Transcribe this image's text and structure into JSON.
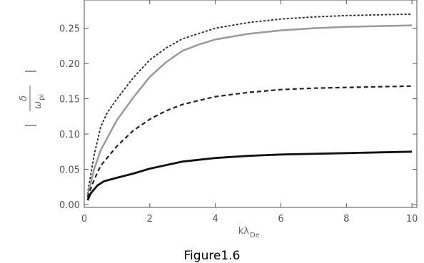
{
  "chart_data": {
    "type": "line",
    "xlabel": {
      "base": "kλ",
      "sub": "De"
    },
    "ylabel": {
      "numerator": "δ",
      "denominator": "ω",
      "denominator_sub": "pi"
    },
    "xlim": [
      0,
      10.15
    ],
    "ylim": [
      -0.004,
      0.29
    ],
    "xticks": [
      0,
      2,
      4,
      6,
      8,
      10
    ],
    "yticks": [
      0.0,
      0.05,
      0.1,
      0.15,
      0.2,
      0.25
    ],
    "ytick_labels": [
      "0.00",
      "0.05",
      "0.10",
      "0.15",
      "0.20",
      "0.25"
    ],
    "grid": false,
    "series": [
      {
        "style": "dotted",
        "color": "#333333",
        "x": [
          0.1,
          0.3,
          0.5,
          0.7,
          1.0,
          1.5,
          2.0,
          2.5,
          3.0,
          4.0,
          5.0,
          6.0,
          7.0,
          8.0,
          9.0,
          10.0
        ],
        "y": [
          0.015,
          0.07,
          0.11,
          0.13,
          0.15,
          0.18,
          0.205,
          0.222,
          0.235,
          0.25,
          0.258,
          0.263,
          0.266,
          0.268,
          0.269,
          0.27
        ]
      },
      {
        "style": "solid",
        "color": "#9a9a9a",
        "x": [
          0.1,
          0.3,
          0.5,
          1.0,
          1.5,
          2.0,
          2.5,
          3.0,
          3.5,
          4.0,
          5.0,
          6.0,
          7.0,
          8.0,
          9.0,
          10.0
        ],
        "y": [
          0.012,
          0.05,
          0.077,
          0.12,
          0.152,
          0.181,
          0.202,
          0.218,
          0.227,
          0.234,
          0.242,
          0.247,
          0.25,
          0.252,
          0.253,
          0.254
        ]
      },
      {
        "style": "dashed",
        "color": "#222222",
        "x": [
          0.1,
          0.3,
          0.5,
          1.0,
          1.5,
          2.0,
          2.5,
          3.0,
          4.0,
          5.0,
          6.0,
          7.0,
          8.0,
          9.0,
          10.0
        ],
        "y": [
          0.01,
          0.035,
          0.055,
          0.083,
          0.105,
          0.121,
          0.133,
          0.142,
          0.153,
          0.159,
          0.163,
          0.165,
          0.166,
          0.167,
          0.168
        ]
      },
      {
        "style": "solid",
        "color": "#111111",
        "x": [
          0.1,
          0.2,
          0.4,
          0.6,
          1.0,
          1.5,
          2.0,
          3.0,
          4.0,
          5.0,
          6.0,
          7.0,
          8.0,
          9.0,
          10.0
        ],
        "y": [
          0.006,
          0.016,
          0.027,
          0.033,
          0.038,
          0.044,
          0.051,
          0.061,
          0.066,
          0.069,
          0.071,
          0.072,
          0.073,
          0.074,
          0.075
        ]
      }
    ]
  },
  "caption": "Figure1.6"
}
